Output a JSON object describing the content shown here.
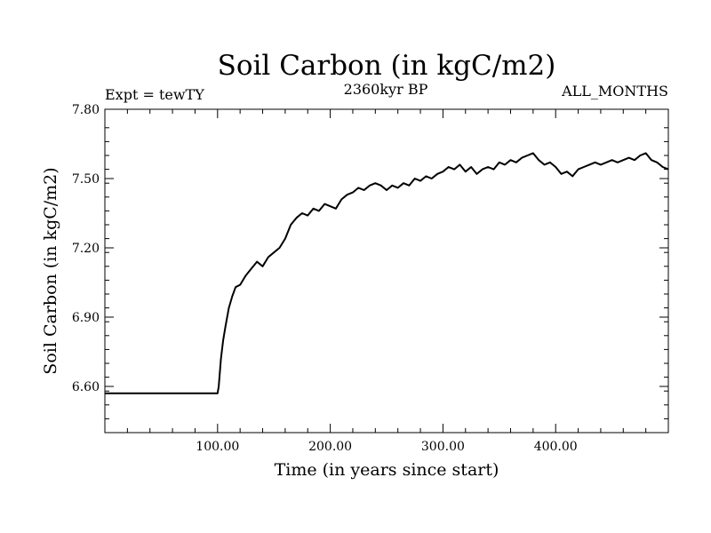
{
  "chart_data": {
    "type": "line",
    "title": "Soil Carbon (in kgC/m2)",
    "subtitle_left": "Expt = tewTY",
    "subtitle_center": "2360kyr BP",
    "subtitle_right": "ALL_MONTHS",
    "xlabel": "Time (in years since start)",
    "ylabel": "Soil Carbon (in kgC/m2)",
    "xlim": [
      0,
      500
    ],
    "ylim": [
      6.4,
      7.8
    ],
    "x_ticks": [
      100,
      200,
      300,
      400
    ],
    "x_tick_labels": [
      "100.00",
      "200.00",
      "300.00",
      "400.00"
    ],
    "y_ticks": [
      6.6,
      6.9,
      7.2,
      7.5,
      7.8
    ],
    "y_tick_labels": [
      "6.60",
      "6.90",
      "7.20",
      "7.50",
      "7.80"
    ],
    "series": [
      {
        "name": "Soil Carbon",
        "color": "#000000",
        "x": [
          0,
          100,
          101,
          103,
          105,
          107,
          110,
          113,
          116,
          120,
          125,
          130,
          135,
          140,
          145,
          150,
          155,
          160,
          165,
          170,
          175,
          180,
          185,
          190,
          195,
          200,
          205,
          210,
          215,
          220,
          225,
          230,
          235,
          240,
          245,
          250,
          255,
          260,
          265,
          270,
          275,
          280,
          285,
          290,
          295,
          300,
          305,
          310,
          315,
          320,
          325,
          330,
          335,
          340,
          345,
          350,
          355,
          360,
          365,
          370,
          375,
          380,
          385,
          390,
          395,
          400,
          405,
          410,
          415,
          420,
          425,
          430,
          435,
          440,
          445,
          450,
          455,
          460,
          465,
          470,
          475,
          480,
          485,
          490,
          495,
          500
        ],
        "values": [
          6.57,
          6.57,
          6.6,
          6.72,
          6.8,
          6.86,
          6.94,
          6.99,
          7.03,
          7.04,
          7.08,
          7.11,
          7.14,
          7.12,
          7.16,
          7.18,
          7.2,
          7.24,
          7.3,
          7.33,
          7.35,
          7.34,
          7.37,
          7.36,
          7.39,
          7.38,
          7.37,
          7.41,
          7.43,
          7.44,
          7.46,
          7.45,
          7.47,
          7.48,
          7.47,
          7.45,
          7.47,
          7.46,
          7.48,
          7.47,
          7.5,
          7.49,
          7.51,
          7.5,
          7.52,
          7.53,
          7.55,
          7.54,
          7.56,
          7.53,
          7.55,
          7.52,
          7.54,
          7.55,
          7.54,
          7.57,
          7.56,
          7.58,
          7.57,
          7.59,
          7.6,
          7.61,
          7.58,
          7.56,
          7.57,
          7.55,
          7.52,
          7.53,
          7.51,
          7.54,
          7.55,
          7.56,
          7.57,
          7.56,
          7.57,
          7.58,
          7.57,
          7.58,
          7.59,
          7.58,
          7.6,
          7.61,
          7.58,
          7.57,
          7.55,
          7.54
        ]
      }
    ]
  }
}
